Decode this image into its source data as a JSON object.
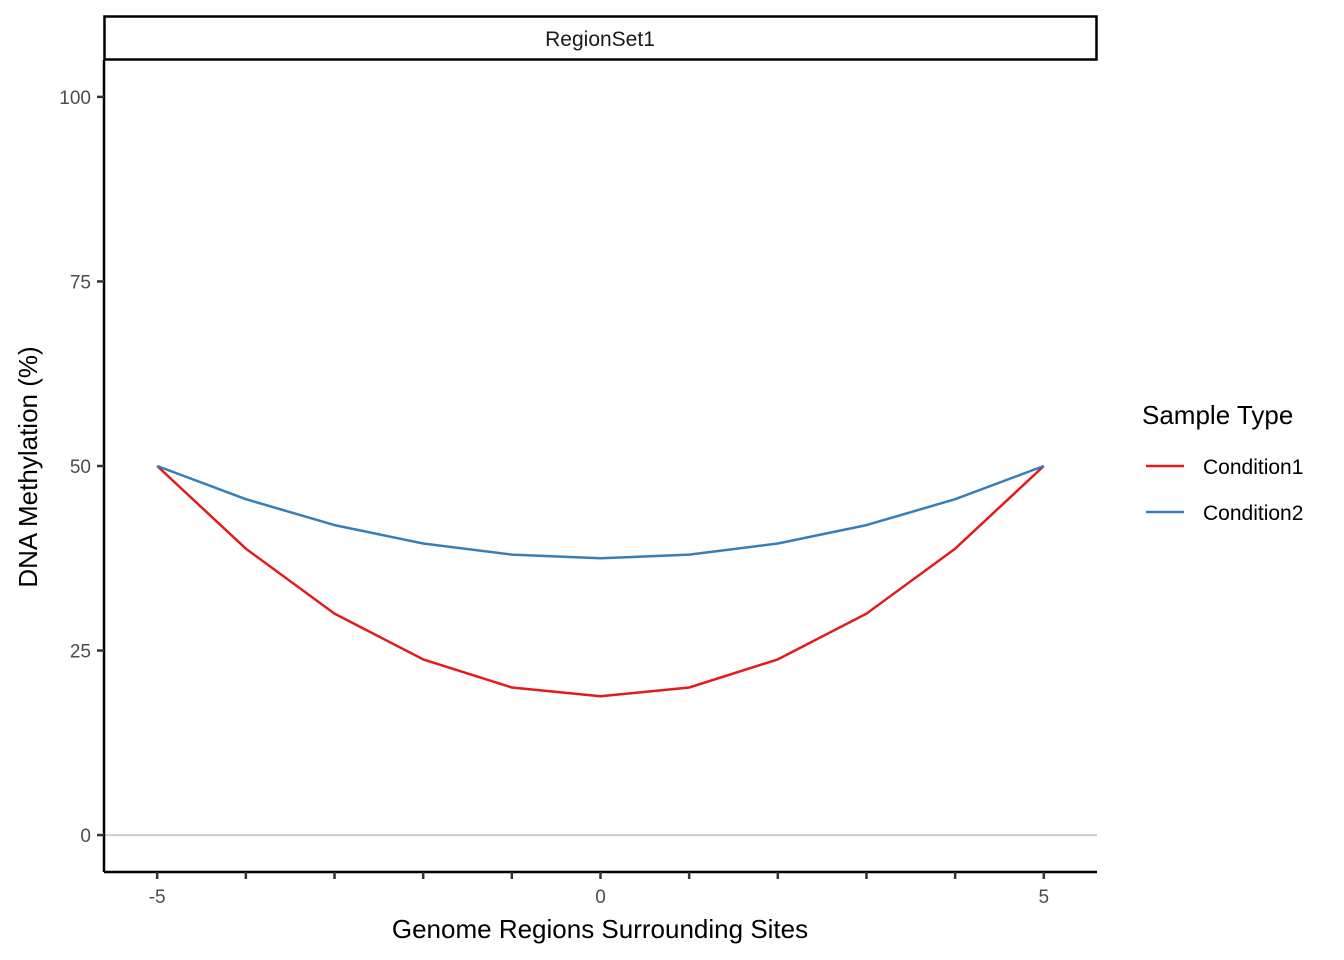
{
  "chart_data": {
    "type": "line",
    "panel_title": "RegionSet1",
    "xlabel": "Genome Regions Surrounding Sites",
    "ylabel": "DNA Methylation (%)",
    "x": [
      -5,
      -4,
      -3,
      -2,
      -1,
      0,
      1,
      2,
      3,
      4,
      5
    ],
    "xlim": [
      -5.6,
      5.6
    ],
    "ylim": [
      -5,
      105
    ],
    "x_ticks": [
      -5,
      -4,
      -3,
      -2,
      -1,
      0,
      1,
      2,
      3,
      4,
      5
    ],
    "x_tick_labels": [
      "-5",
      "",
      "",
      "",
      "",
      "0",
      "",
      "",
      "",
      "",
      "5"
    ],
    "y_ticks": [
      0,
      25,
      50,
      75,
      100
    ],
    "y_tick_labels": [
      "0",
      "25",
      "50",
      "75",
      "100"
    ],
    "reference_line_y": 0,
    "grid": false,
    "legend": {
      "title": "Sample Type",
      "position": "right"
    },
    "series": [
      {
        "name": "Condition1",
        "color": "#e41a1c",
        "values": [
          50,
          38.8,
          30,
          23.8,
          20,
          18.8,
          20,
          23.8,
          30,
          38.8,
          50
        ]
      },
      {
        "name": "Condition2",
        "color": "#377eb8",
        "values": [
          50,
          45.5,
          42,
          39.5,
          38,
          37.5,
          38,
          39.5,
          42,
          45.5,
          50
        ]
      }
    ]
  }
}
